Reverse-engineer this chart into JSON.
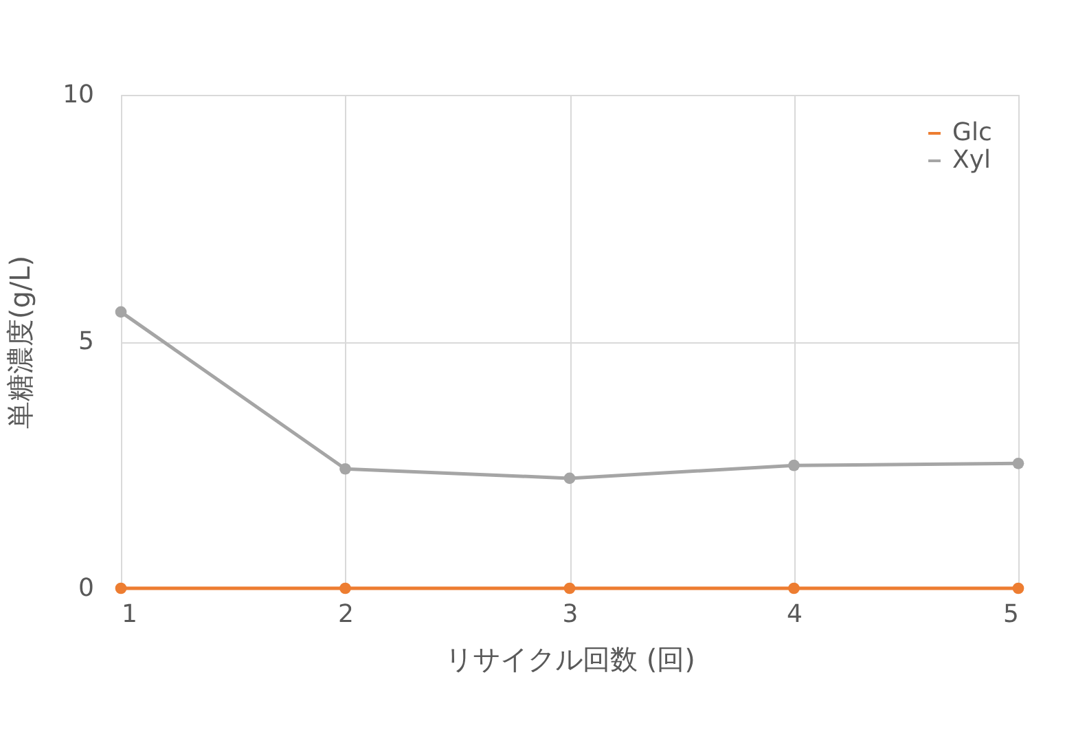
{
  "chart_data": {
    "type": "line",
    "xlabel": "リサイクル回数 (回)",
    "ylabel": "単糖濃度(g/L)",
    "x": [
      1,
      2,
      3,
      4,
      5
    ],
    "xlim": [
      1,
      5
    ],
    "xticks": [
      1,
      2,
      3,
      4,
      5
    ],
    "ylim": [
      0,
      10
    ],
    "yticks": [
      0,
      5,
      10
    ],
    "series": [
      {
        "name": "Glc",
        "color": "#ed7d31",
        "values": [
          0,
          0,
          0,
          0,
          0
        ]
      },
      {
        "name": "Xyl",
        "color": "#a5a5a5",
        "values": [
          5.6,
          2.42,
          2.23,
          2.49,
          2.53
        ]
      }
    ],
    "grid": true,
    "legend": "top right",
    "marker": "circle",
    "line_style": "solid"
  }
}
